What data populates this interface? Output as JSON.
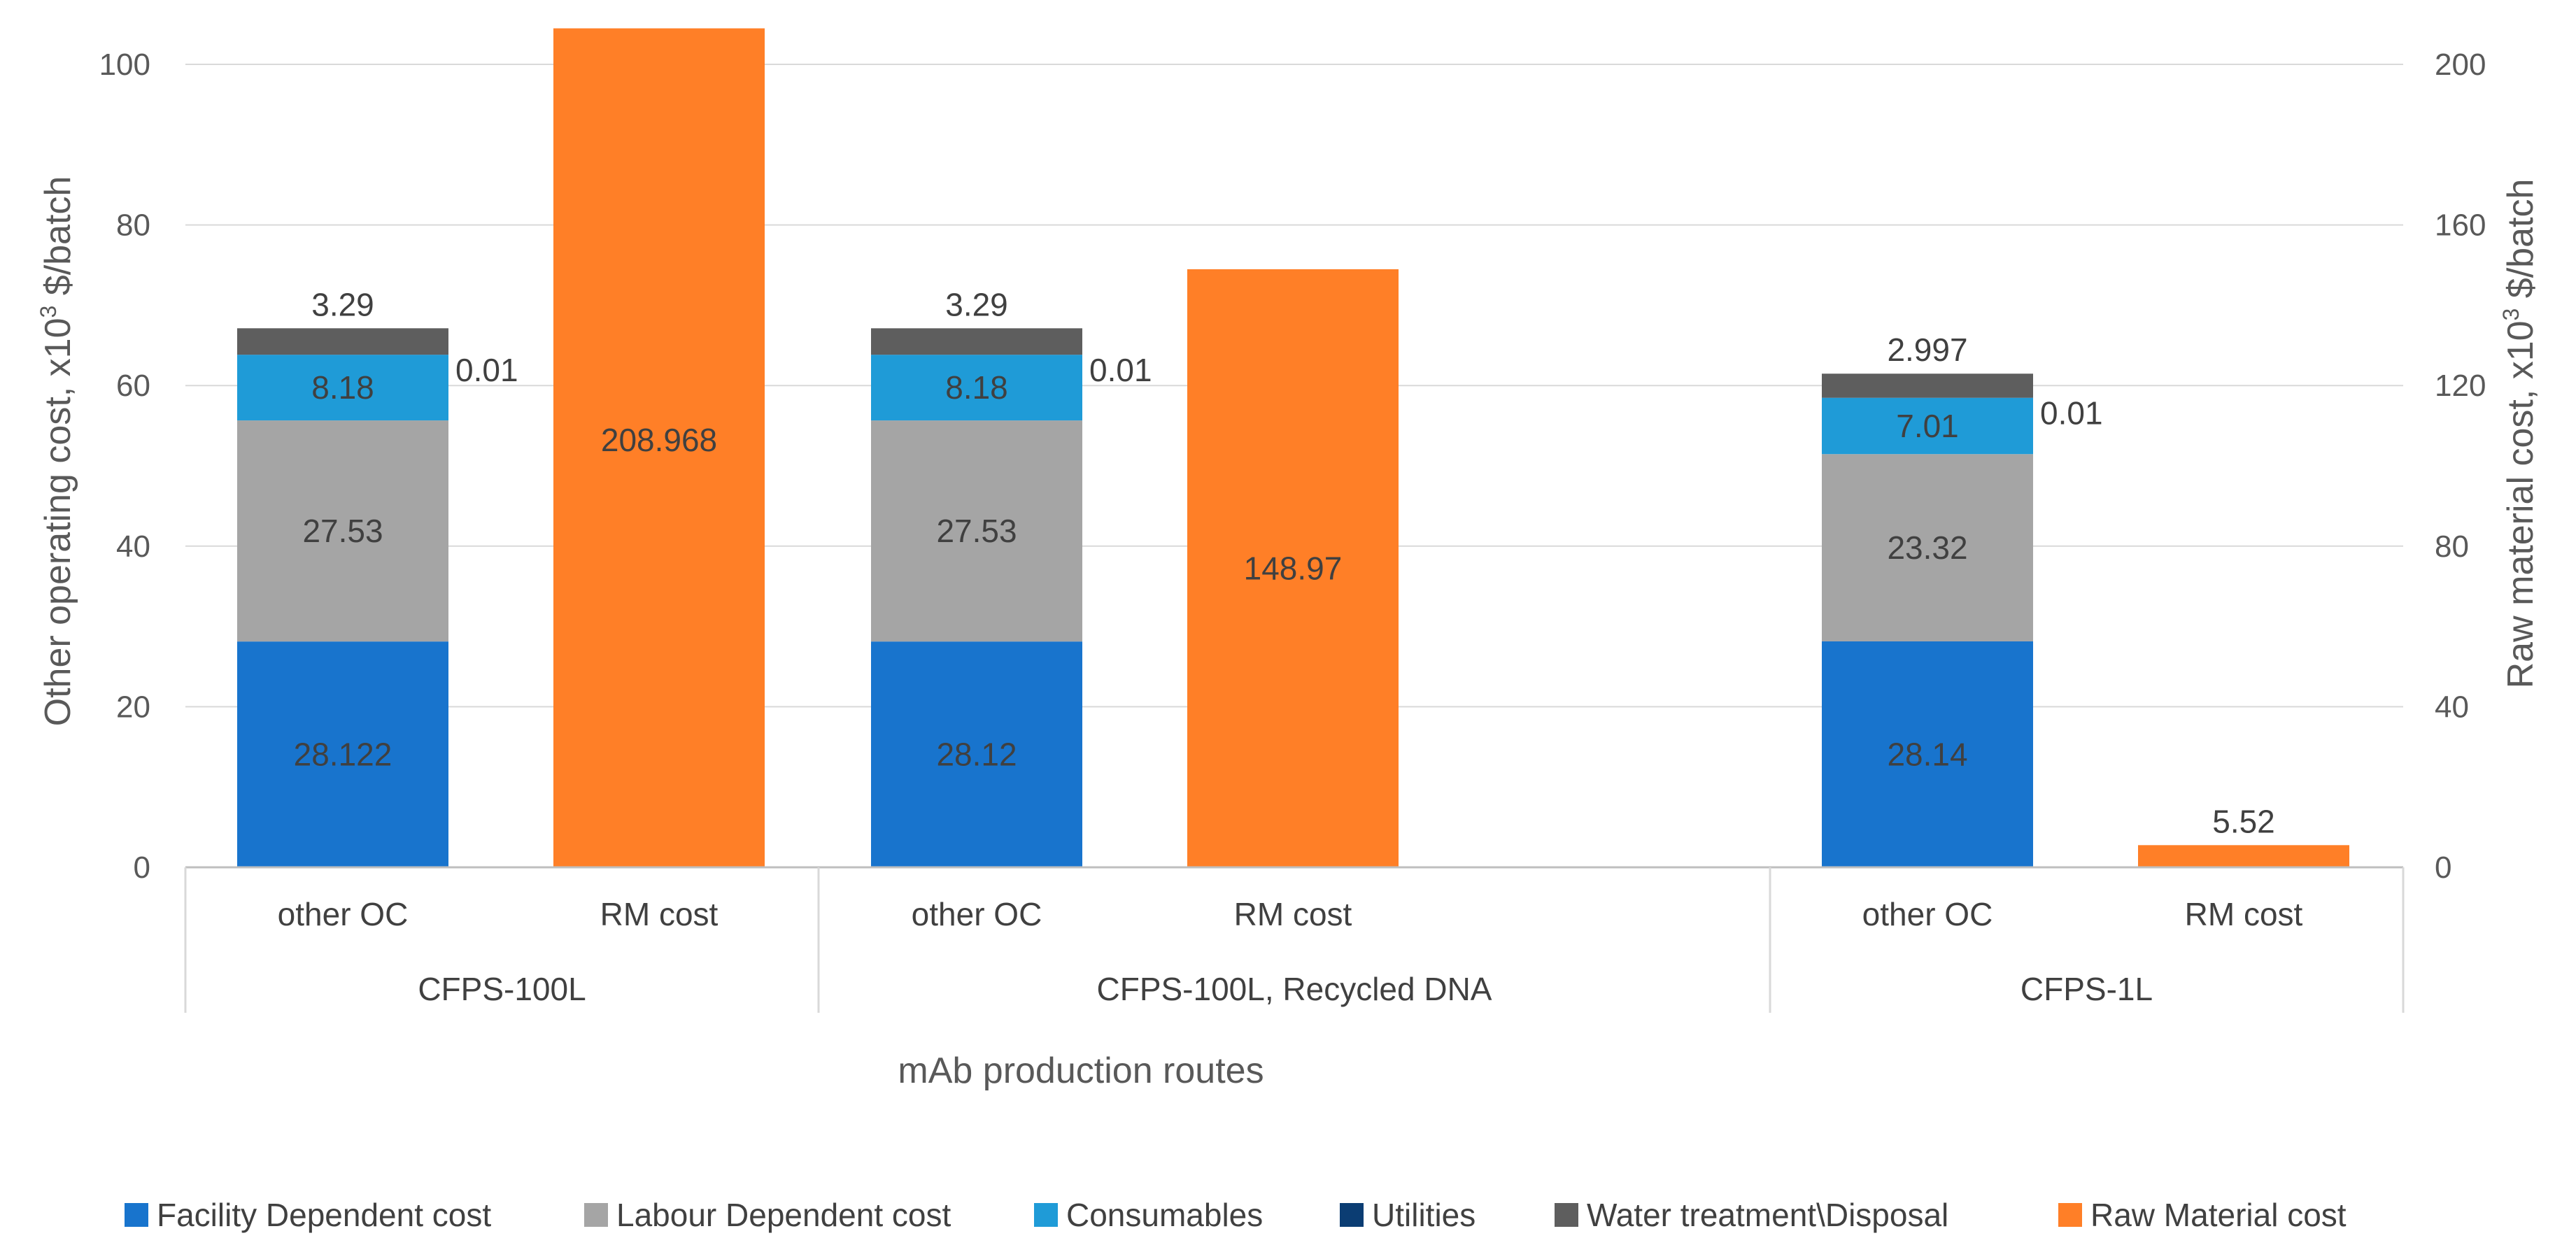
{
  "chart_data": {
    "type": "bar",
    "stacked": true,
    "title": "",
    "xlabel": "mAb production routes",
    "ylabel": "Other operating cost, x10³ $/batch",
    "ylabel_parts": [
      "Other operating cost, x10",
      "3",
      " $/batch"
    ],
    "y2label": "Raw material cost, x10³ $/batch",
    "y2label_parts": [
      "Raw material cost, x10",
      "3",
      " $/batch"
    ],
    "ylim": [
      0,
      100
    ],
    "y2lim": [
      0,
      200
    ],
    "yticks": [
      0,
      20,
      40,
      60,
      80,
      100
    ],
    "y2ticks": [
      0,
      40,
      80,
      120,
      160,
      200
    ],
    "grid": true,
    "legend_position": "bottom",
    "groups": [
      "CFPS-100L",
      "CFPS-100L, Recycled  DNA",
      "CFPS-1L"
    ],
    "subcategories": [
      "other OC",
      "RM cost"
    ],
    "series": [
      {
        "name": "Facility Dependent cost",
        "color": "#1874CD",
        "axis": "left",
        "values": [
          28.122,
          28.12,
          28.14
        ],
        "labels": [
          "28.122",
          "28.12",
          "28.14"
        ]
      },
      {
        "name": "Labour Dependent cost",
        "color": "#A5A5A5",
        "axis": "left",
        "values": [
          27.53,
          27.53,
          23.32
        ],
        "labels": [
          "27.53",
          "27.53",
          "23.32"
        ]
      },
      {
        "name": "Consumables",
        "color": "#1F9BD7",
        "axis": "left",
        "values": [
          8.18,
          8.18,
          7.01
        ],
        "labels": [
          "8.18",
          "8.18",
          "7.01"
        ]
      },
      {
        "name": "Utilities",
        "color": "#0B3D73",
        "axis": "left",
        "values": [
          0.01,
          0.01,
          0.01
        ],
        "labels": [
          "0.01",
          "0.01",
          "0.01"
        ]
      },
      {
        "name": "Water treatment\\Disposal",
        "color": "#5E5E5E",
        "axis": "left",
        "values": [
          3.29,
          3.29,
          2.997
        ],
        "labels": [
          "3.29",
          "3.29",
          "2.997"
        ]
      },
      {
        "name": "Raw Material cost",
        "color": "#FF7F27",
        "axis": "right",
        "values": [
          208.968,
          148.97,
          5.52
        ],
        "labels": [
          "208.968",
          "148.97",
          "5.52"
        ]
      }
    ]
  }
}
